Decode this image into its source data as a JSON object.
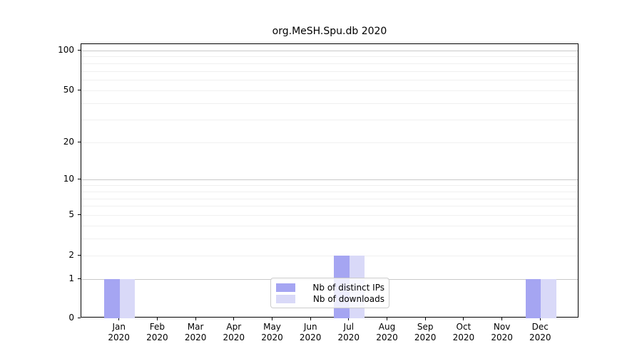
{
  "chart_data": {
    "type": "bar",
    "title": "org.MeSH.Spu.db 2020",
    "categories": [
      "Jan",
      "Feb",
      "Mar",
      "Apr",
      "May",
      "Jun",
      "Jul",
      "Aug",
      "Sep",
      "Oct",
      "Nov",
      "Dec"
    ],
    "category_year": "2020",
    "series": [
      {
        "name": "Nb of distinct IPs",
        "color": "#a5a5f2",
        "values": [
          1,
          0,
          0,
          0,
          0,
          0,
          2,
          0,
          0,
          0,
          0,
          1
        ]
      },
      {
        "name": "Nb of downloads",
        "color": "#d9d9f8",
        "values": [
          1,
          0,
          0,
          0,
          0,
          0,
          2,
          0,
          0,
          0,
          0,
          1
        ]
      }
    ],
    "yscale": "log1p",
    "ylim": [
      0,
      110
    ],
    "yticks": [
      100,
      50,
      20,
      10,
      5,
      2,
      1,
      0
    ],
    "major_gridlines": [
      1,
      10,
      100
    ],
    "minor_gridlines": [
      2,
      3,
      4,
      5,
      6,
      7,
      8,
      9,
      20,
      30,
      40,
      50,
      60,
      70,
      80,
      90
    ],
    "grid": true,
    "legend_position": "lower center",
    "colors": {
      "major_grid": "#c9c9c9",
      "minor_grid": "#f0f0f0",
      "axis": "#000000",
      "text": "#000000",
      "legend_border": "#cccccc"
    }
  }
}
